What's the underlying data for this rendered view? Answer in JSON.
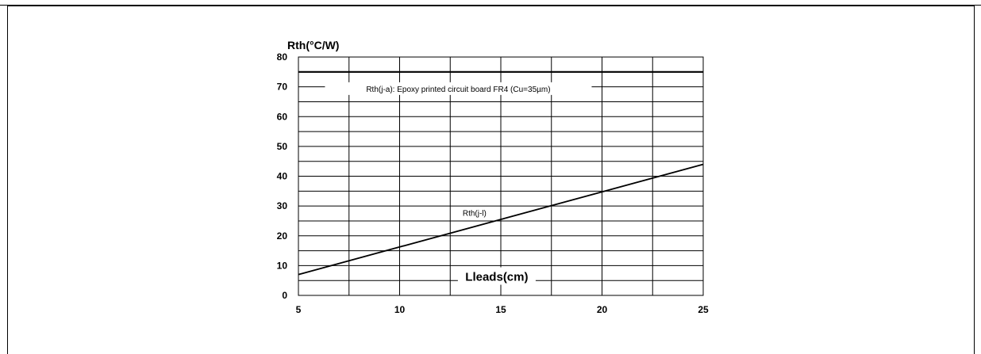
{
  "chart_data": {
    "type": "line",
    "title": "",
    "ylabel": "Rth(°C/W)",
    "xlabel": "Lleads(cm)",
    "xlim": [
      5,
      25
    ],
    "ylim": [
      0,
      80
    ],
    "x_ticks": [
      5,
      10,
      15,
      20,
      25
    ],
    "y_ticks": [
      0,
      10,
      20,
      30,
      40,
      50,
      60,
      70,
      80
    ],
    "grid": true,
    "series": [
      {
        "name": "Rth(j-a): Epoxy printed circuit board FR4 (Cu=35µm)",
        "x": [
          5,
          25
        ],
        "y": [
          75,
          75
        ]
      },
      {
        "name": "Rth(j-l)",
        "x": [
          5,
          25
        ],
        "y": [
          7,
          44
        ]
      }
    ]
  }
}
